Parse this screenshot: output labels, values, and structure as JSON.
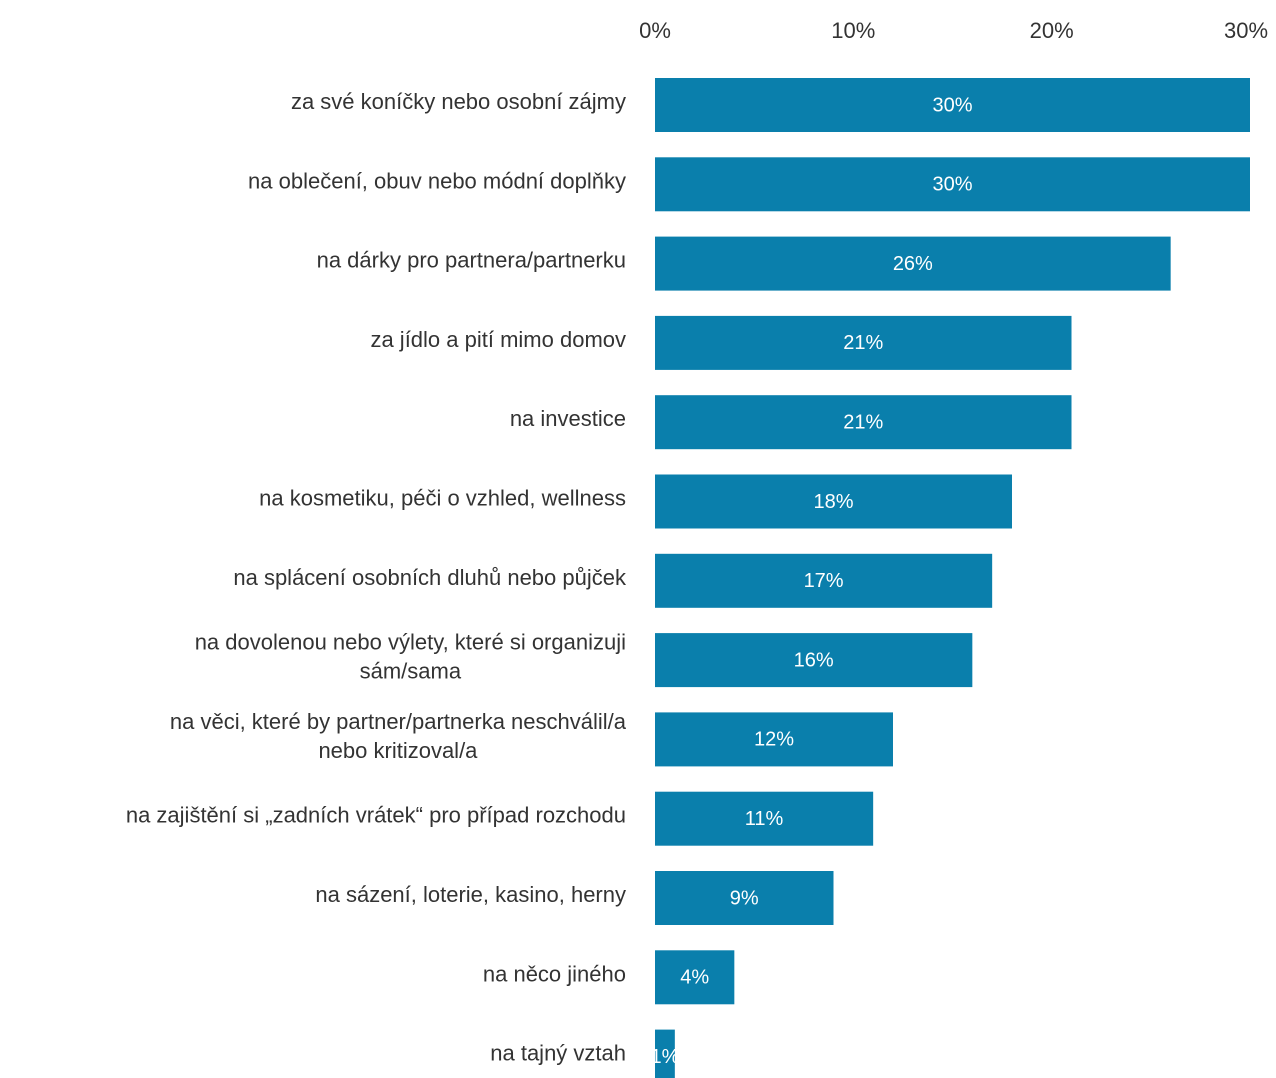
{
  "colors": {
    "bar": "#0a7fac",
    "value_text": "#ffffff",
    "label_text": "#333333"
  },
  "chart_data": {
    "type": "bar",
    "orientation": "horizontal",
    "categories": [
      "za své koníčky nebo osobní zájmy",
      "na oblečení, obuv nebo módní doplňky",
      "na dárky pro partnera/partnerku",
      "za jídlo a pití mimo domov",
      "na investice",
      "na kosmetiku, péči o vzhled, wellness",
      "na splácení osobních dluhů nebo půjček",
      "na dovolenou nebo výlety, které si organizuji sám/sama",
      "na věci, které by partner/partnerka neschválil/a nebo kritizoval/a",
      "na zajištění si „zadních vrátek“ pro případ rozchodu",
      "na sázení, loterie, kasino, herny",
      "na něco jiného",
      "na tajný vztah"
    ],
    "category_lines": [
      [
        "za své koníčky nebo osobní zájmy"
      ],
      [
        "na oblečení, obuv nebo módní doplňky"
      ],
      [
        "na dárky pro partnera/partnerku"
      ],
      [
        "za jídlo a pití mimo domov"
      ],
      [
        "na investice"
      ],
      [
        "na kosmetiku, péči o vzhled, wellness"
      ],
      [
        "na splácení osobních dluhů nebo půjček"
      ],
      [
        "na dovolenou nebo výlety, které si organizuji",
        "sám/sama"
      ],
      [
        "na věci, které by partner/partnerka neschválil/a",
        "nebo kritizoval/a"
      ],
      [
        "na zajištění si „zadních vrátek“ pro případ rozchodu"
      ],
      [
        "na sázení, loterie, kasino, herny"
      ],
      [
        "na něco jiného"
      ],
      [
        "na tajný vztah"
      ]
    ],
    "values": [
      30,
      30,
      26,
      21,
      21,
      18,
      17,
      16,
      12,
      11,
      9,
      4,
      1
    ],
    "value_labels": [
      "30%",
      "30%",
      "26%",
      "21%",
      "21%",
      "18%",
      "17%",
      "16%",
      "12%",
      "11%",
      "9%",
      "4%",
      "1%"
    ],
    "title": "",
    "xlabel": "",
    "ylabel": "",
    "xlim": [
      0,
      30
    ],
    "x_ticks": [
      0,
      10,
      20,
      30
    ],
    "x_tick_labels": [
      "0%",
      "10%",
      "20%",
      "30%"
    ],
    "x_axis_position": "top",
    "grid": false,
    "legend": false
  }
}
